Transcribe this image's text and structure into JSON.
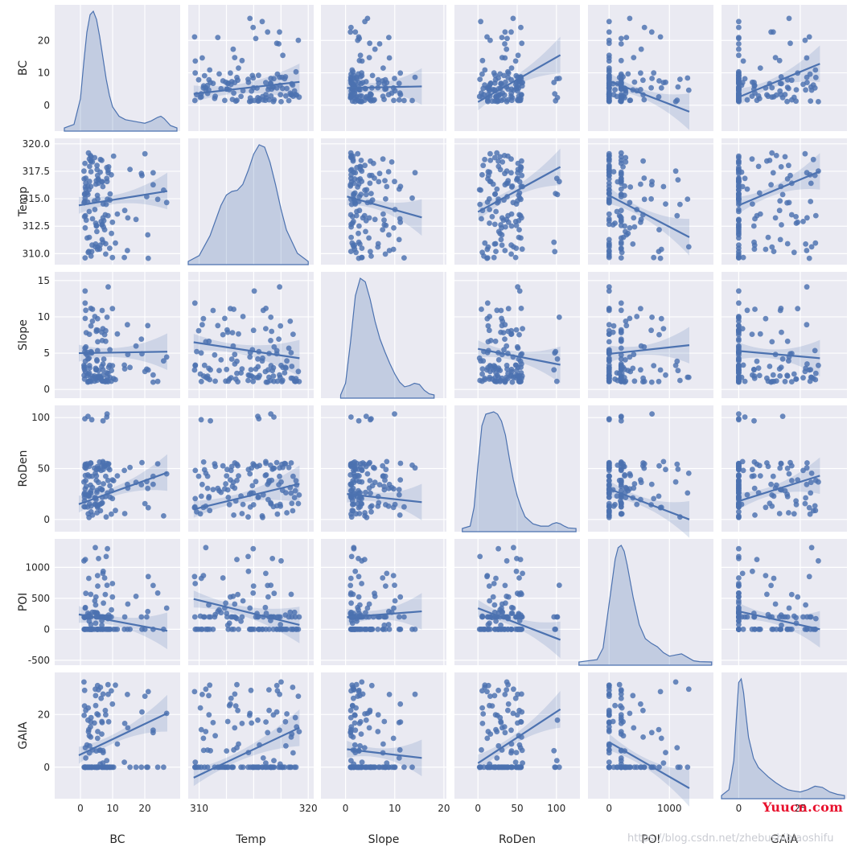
{
  "chart_data": {
    "type": "pairplot",
    "kind": "reg",
    "diag_kind": "kde",
    "variables": [
      "BC",
      "Temp",
      "Slope",
      "RoDen",
      "POI",
      "GAIA"
    ],
    "colors": {
      "background": "#eaeaf2",
      "grid": "#ffffff",
      "marker": "#4c72b0",
      "band": "#4c72b0",
      "text": "#262626"
    },
    "axes": {
      "BC": {
        "lim": [
          -8,
          31
        ],
        "ticks": [
          0,
          10,
          20
        ],
        "tick_labels": [
          "0",
          "10",
          "20"
        ]
      },
      "Temp": {
        "lim": [
          309,
          320.5
        ],
        "ticks": [
          310,
          312.5,
          315,
          317.5,
          320
        ],
        "tick_labels": [
          "310.0",
          "312.5",
          "315.0",
          "317.5",
          "320.0"
        ],
        "x_tick_labels": [
          "310",
          "",
          "",
          "",
          "320"
        ]
      },
      "Slope": {
        "lim": [
          -1.2,
          16.2
        ],
        "ticks": [
          0,
          5,
          10,
          15
        ],
        "tick_labels": [
          "0",
          "5",
          "10",
          "15"
        ],
        "x_ticks": [
          0,
          10,
          20
        ],
        "x_tick_labels": [
          "0",
          "10",
          "20"
        ],
        "x_lim": [
          -5,
          20.5
        ]
      },
      "RoDen": {
        "lim": [
          -12,
          112
        ],
        "ticks": [
          0,
          50,
          100
        ],
        "tick_labels": [
          "0",
          "50",
          "100"
        ],
        "x_lim": [
          -30,
          130
        ]
      },
      "POI": {
        "lim": [
          -580,
          1460
        ],
        "ticks": [
          -500,
          0,
          500,
          1000
        ],
        "tick_labels": [
          "-500",
          "0",
          "500",
          "1000"
        ],
        "x_ticks": [
          0,
          1000
        ],
        "x_tick_labels": [
          "0",
          "1000"
        ],
        "x_lim": [
          -350,
          1730
        ]
      },
      "GAIA": {
        "lim": [
          -12,
          36
        ],
        "ticks": [
          0,
          20
        ],
        "tick_labels": [
          "0",
          "20"
        ],
        "x_ticks": [
          0,
          25
        ],
        "x_tick_labels": [
          "0",
          "25"
        ],
        "x_lim": [
          -7,
          44
        ]
      }
    },
    "fits": {
      "Temp|BC": [
        [
          -0.5,
          314.4
        ],
        [
          27,
          315.7
        ]
      ],
      "Slope|BC": [
        [
          -0.5,
          5.0
        ],
        [
          27,
          5.2
        ]
      ],
      "RoDen|BC": [
        [
          -0.5,
          15
        ],
        [
          27,
          46
        ]
      ],
      "POI|BC": [
        [
          -0.5,
          240
        ],
        [
          27,
          -25
        ]
      ],
      "GAIA|BC": [
        [
          -0.5,
          4.5
        ],
        [
          27,
          20.5
        ]
      ],
      "BC|Temp": [
        [
          309.5,
          3.5
        ],
        [
          319.2,
          7.2
        ]
      ],
      "Slope|Temp": [
        [
          309.5,
          6.5
        ],
        [
          319.2,
          4.3
        ]
      ],
      "RoDen|Temp": [
        [
          309.5,
          10
        ],
        [
          319.2,
          35
        ]
      ],
      "POI|Temp": [
        [
          309.5,
          490
        ],
        [
          319.2,
          70
        ]
      ],
      "GAIA|Temp": [
        [
          309.5,
          -4
        ],
        [
          319.2,
          15
        ]
      ],
      "BC|Slope": [
        [
          0.3,
          5.3
        ],
        [
          15.5,
          5.8
        ]
      ],
      "Temp|Slope": [
        [
          0.3,
          315.2
        ],
        [
          15.5,
          313.3
        ]
      ],
      "RoDen|Slope": [
        [
          0.3,
          25
        ],
        [
          15.5,
          17
        ]
      ],
      "POI|Slope": [
        [
          0.3,
          195
        ],
        [
          15.5,
          290
        ]
      ],
      "GAIA|Slope": [
        [
          0.3,
          6.8
        ],
        [
          15.5,
          3.5
        ]
      ],
      "BC|RoDen": [
        [
          0,
          1.0
        ],
        [
          105,
          15.5
        ]
      ],
      "Temp|RoDen": [
        [
          0,
          313.8
        ],
        [
          105,
          317.9
        ]
      ],
      "Slope|RoDen": [
        [
          0,
          5.6
        ],
        [
          105,
          3.4
        ]
      ],
      "POI|RoDen": [
        [
          0,
          340
        ],
        [
          105,
          -170
        ]
      ],
      "GAIA|RoDen": [
        [
          0,
          1.5
        ],
        [
          105,
          22
        ]
      ],
      "BC|POI": [
        [
          0,
          7.5
        ],
        [
          1330,
          -2
        ]
      ],
      "Temp|POI": [
        [
          0,
          315.3
        ],
        [
          1330,
          311.5
        ]
      ],
      "Slope|POI": [
        [
          0,
          4.9
        ],
        [
          1330,
          6.1
        ]
      ],
      "RoDen|POI": [
        [
          0,
          30
        ],
        [
          1330,
          0
        ]
      ],
      "GAIA|POI": [
        [
          0,
          9.5
        ],
        [
          1330,
          -8
        ]
      ],
      "BC|GAIA": [
        [
          0,
          2.5
        ],
        [
          33,
          12.8
        ]
      ],
      "Temp|GAIA": [
        [
          0,
          314.4
        ],
        [
          33,
          317.5
        ]
      ],
      "Slope|GAIA": [
        [
          0,
          5.3
        ],
        [
          33,
          4.3
        ]
      ],
      "RoDen|GAIA": [
        [
          0,
          18
        ],
        [
          33,
          43
        ]
      ],
      "POI|GAIA": [
        [
          0,
          290
        ],
        [
          33,
          0
        ]
      ]
    },
    "diag_kde": {
      "BC": {
        "x": [
          -5,
          -2,
          0,
          1,
          2,
          3,
          4,
          5,
          6,
          7,
          8,
          9,
          10,
          12,
          14,
          16,
          18,
          20,
          22,
          24,
          25,
          26,
          28,
          30
        ],
        "y": [
          0.0,
          0.03,
          0.25,
          0.55,
          0.82,
          0.97,
          1.0,
          0.93,
          0.78,
          0.6,
          0.42,
          0.28,
          0.18,
          0.1,
          0.07,
          0.06,
          0.05,
          0.04,
          0.06,
          0.09,
          0.1,
          0.08,
          0.02,
          0.0
        ]
      },
      "Temp": {
        "x": [
          309,
          310,
          311,
          312,
          312.5,
          313,
          313.5,
          314,
          314.5,
          315,
          315.5,
          316,
          316.5,
          317,
          317.5,
          318,
          319,
          320
        ],
        "y": [
          0.0,
          0.05,
          0.22,
          0.48,
          0.57,
          0.6,
          0.61,
          0.66,
          0.78,
          0.92,
          1.0,
          0.98,
          0.85,
          0.66,
          0.45,
          0.27,
          0.07,
          0.0
        ]
      },
      "Slope": {
        "x": [
          -1,
          0,
          1,
          2,
          3,
          4,
          5,
          6,
          7,
          8,
          9,
          10,
          11,
          12,
          13,
          14,
          15,
          16,
          17,
          18
        ],
        "y": [
          0.0,
          0.1,
          0.45,
          0.85,
          1.0,
          0.97,
          0.82,
          0.63,
          0.48,
          0.37,
          0.27,
          0.18,
          0.11,
          0.07,
          0.08,
          0.1,
          0.09,
          0.04,
          0.01,
          0.0
        ]
      },
      "RoDen": {
        "x": [
          -20,
          -10,
          -5,
          0,
          5,
          10,
          15,
          20,
          25,
          30,
          35,
          40,
          45,
          50,
          55,
          60,
          70,
          80,
          90,
          95,
          100,
          105,
          110,
          115,
          125
        ],
        "y": [
          0.0,
          0.02,
          0.18,
          0.55,
          0.88,
          0.98,
          0.99,
          1.0,
          0.98,
          0.92,
          0.8,
          0.6,
          0.42,
          0.28,
          0.18,
          0.1,
          0.04,
          0.02,
          0.02,
          0.04,
          0.05,
          0.04,
          0.02,
          0.005,
          0.0
        ]
      },
      "POI": {
        "x": [
          -500,
          -200,
          -100,
          0,
          100,
          150,
          200,
          250,
          300,
          400,
          500,
          600,
          700,
          800,
          900,
          1000,
          1100,
          1200,
          1300,
          1400,
          1500,
          1700
        ],
        "y": [
          0.0,
          0.02,
          0.12,
          0.5,
          0.88,
          0.98,
          1.0,
          0.95,
          0.83,
          0.55,
          0.32,
          0.2,
          0.16,
          0.13,
          0.08,
          0.05,
          0.06,
          0.07,
          0.04,
          0.01,
          0.003,
          0.0
        ]
      },
      "GAIA": {
        "x": [
          -7,
          -4,
          -2,
          -1,
          0,
          1,
          2,
          3,
          4,
          6,
          8,
          10,
          12,
          15,
          18,
          20,
          22,
          25,
          28,
          31,
          34,
          37,
          40,
          43
        ],
        "y": [
          0.0,
          0.05,
          0.3,
          0.65,
          0.97,
          1.0,
          0.88,
          0.68,
          0.5,
          0.32,
          0.24,
          0.2,
          0.16,
          0.11,
          0.07,
          0.05,
          0.04,
          0.03,
          0.05,
          0.08,
          0.07,
          0.03,
          0.01,
          0.0
        ]
      }
    }
  },
  "watermark": {
    "brand": "Yuucn.com",
    "url": "https://blog.csdn.net/zhebushibiaoshifu"
  }
}
